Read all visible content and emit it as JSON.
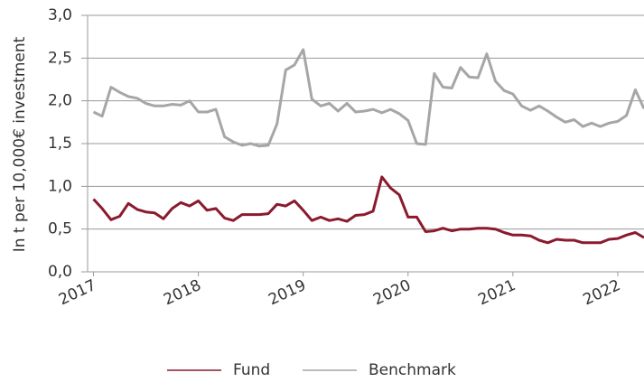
{
  "chart_data": {
    "type": "line",
    "y_label": "In t per 10,000€ investment",
    "x": [
      2017,
      2017.083,
      2017.167,
      2017.25,
      2017.333,
      2017.417,
      2017.5,
      2017.583,
      2017.667,
      2017.75,
      2017.833,
      2017.917,
      2018,
      2018.083,
      2018.167,
      2018.25,
      2018.333,
      2018.417,
      2018.5,
      2018.583,
      2018.667,
      2018.75,
      2018.833,
      2018.917,
      2019,
      2019.083,
      2019.167,
      2019.25,
      2019.333,
      2019.417,
      2019.5,
      2019.583,
      2019.667,
      2019.75,
      2019.833,
      2019.917,
      2020,
      2020.083,
      2020.167,
      2020.25,
      2020.333,
      2020.417,
      2020.5,
      2020.583,
      2020.667,
      2020.75,
      2020.833,
      2020.917,
      2021,
      2021.083,
      2021.167,
      2021.25,
      2021.333,
      2021.417,
      2021.5,
      2021.583,
      2021.667,
      2021.75,
      2021.833,
      2021.917,
      2022,
      2022.083,
      2022.167,
      2022.25
    ],
    "series": [
      {
        "name": "Fund",
        "color": "#8b1a2e",
        "width": 3,
        "values": [
          0.85,
          0.74,
          0.61,
          0.65,
          0.8,
          0.73,
          0.7,
          0.69,
          0.62,
          0.74,
          0.81,
          0.77,
          0.83,
          0.72,
          0.74,
          0.63,
          0.6,
          0.67,
          0.67,
          0.67,
          0.68,
          0.79,
          0.77,
          0.83,
          0.72,
          0.6,
          0.64,
          0.6,
          0.62,
          0.59,
          0.66,
          0.67,
          0.71,
          1.11,
          0.98,
          0.9,
          0.64,
          0.64,
          0.47,
          0.48,
          0.51,
          0.48,
          0.5,
          0.5,
          0.51,
          0.51,
          0.5,
          0.46,
          0.43,
          0.43,
          0.42,
          0.37,
          0.34,
          0.38,
          0.37,
          0.37,
          0.34,
          0.34,
          0.34,
          0.38,
          0.39,
          0.43,
          0.46,
          0.4
        ]
      },
      {
        "name": "Benchmark",
        "color": "#a6a6a6",
        "width": 3,
        "values": [
          1.87,
          1.82,
          2.16,
          2.1,
          2.05,
          2.03,
          1.97,
          1.94,
          1.94,
          1.96,
          1.95,
          2.0,
          1.87,
          1.87,
          1.9,
          1.58,
          1.52,
          1.48,
          1.5,
          1.47,
          1.48,
          1.73,
          2.36,
          2.42,
          2.6,
          2.02,
          1.94,
          1.97,
          1.88,
          1.97,
          1.87,
          1.88,
          1.9,
          1.86,
          1.9,
          1.85,
          1.77,
          1.5,
          1.49,
          2.32,
          2.16,
          2.15,
          2.39,
          2.28,
          2.27,
          2.55,
          2.23,
          2.12,
          2.08,
          1.94,
          1.89,
          1.94,
          1.88,
          1.81,
          1.75,
          1.78,
          1.7,
          1.74,
          1.7,
          1.74,
          1.76,
          1.83,
          2.13,
          1.91
        ]
      }
    ],
    "xlim": [
      2016.97,
      2022.25
    ],
    "xticks": [
      2017,
      2018,
      2019,
      2020,
      2021,
      2022
    ],
    "ylim": [
      0,
      3
    ],
    "yticks": [
      {
        "value": 0,
        "label": "0,0"
      },
      {
        "value": 0.5,
        "label": "0,5"
      },
      {
        "value": 1,
        "label": "1,0"
      },
      {
        "value": 1.5,
        "label": "1,5"
      },
      {
        "value": 2,
        "label": "2,0"
      },
      {
        "value": 2.5,
        "label": "2,5"
      },
      {
        "value": 3,
        "label": "3,0"
      }
    ],
    "grid": true,
    "legend": "bottom"
  }
}
